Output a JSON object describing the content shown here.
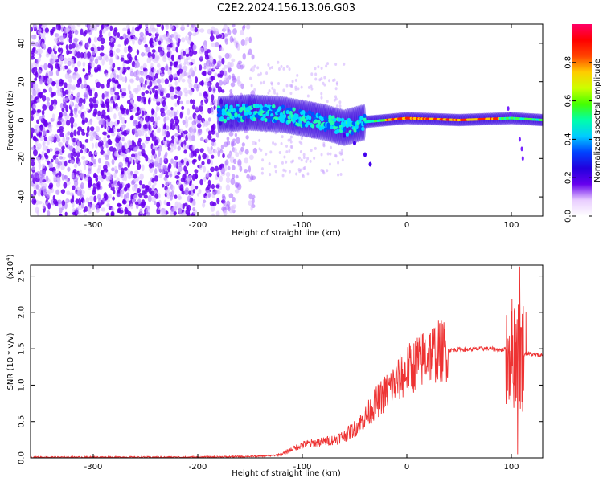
{
  "title": "C2E2.2024.156.13.06.G03",
  "chart_data": [
    {
      "type": "heatmap",
      "name": "spectrogram",
      "xlabel": "Height of straight line (km)",
      "ylabel": "Frequency (Hz)",
      "xlim": [
        -360,
        130
      ],
      "ylim": [
        -50,
        50
      ],
      "x_ticks": [
        "-300",
        "-200",
        "-100",
        "0",
        "100"
      ],
      "y_ticks": [
        "-40",
        "-20",
        "0",
        "20",
        "40"
      ],
      "colorbar": {
        "label": "Normalized spectral amplitude",
        "range": [
          0.0,
          1.0
        ],
        "ticks": [
          "0.0",
          "0.2",
          "0.4",
          "0.6",
          "0.8"
        ],
        "colormap": [
          "#ffffff",
          "#e8ccff",
          "#6600ee",
          "#2200dd",
          "#0044ff",
          "#00ccff",
          "#00ffaa",
          "#44ff00",
          "#ccff00",
          "#ffcc00",
          "#ff4400",
          "#ff0000",
          "#ff0066"
        ]
      },
      "signal_track": [
        {
          "x": -180,
          "f": 3
        },
        {
          "x": -150,
          "f": 4
        },
        {
          "x": -120,
          "f": 3
        },
        {
          "x": -100,
          "f": 1
        },
        {
          "x": -80,
          "f": -1
        },
        {
          "x": -60,
          "f": -4
        },
        {
          "x": -40,
          "f": -1
        },
        {
          "x": -20,
          "f": 0
        },
        {
          "x": 0,
          "f": 1
        },
        {
          "x": 50,
          "f": 0
        },
        {
          "x": 100,
          "f": 1
        },
        {
          "x": 130,
          "f": 0
        }
      ],
      "grid": false
    },
    {
      "type": "line",
      "name": "snr",
      "xlabel": "Height of straight line (km)",
      "ylabel": "SNR (10 * v/v)",
      "y_multiplier_label": "(x10",
      "y_multiplier_exp": "4",
      "xlim": [
        -360,
        130
      ],
      "ylim": [
        0,
        2.65
      ],
      "x_ticks": [
        "-300",
        "-200",
        "-100",
        "0",
        "100"
      ],
      "y_ticks": [
        "0.0",
        "0.5",
        "1.0",
        "1.5",
        "2.0",
        "2.5"
      ],
      "color": "#ee3333",
      "series": [
        {
          "x": [
            -360,
            -300,
            -200,
            -150,
            -130,
            -120,
            -110,
            -100,
            -90,
            -80,
            -70,
            -60,
            -50,
            -40,
            -30,
            -20,
            -10,
            0,
            10,
            20,
            30,
            40,
            50,
            60,
            70,
            80,
            90,
            95,
            100,
            105,
            110,
            115,
            120,
            130
          ],
          "values": [
            0.01,
            0.01,
            0.01,
            0.02,
            0.03,
            0.05,
            0.12,
            0.18,
            0.2,
            0.22,
            0.25,
            0.3,
            0.4,
            0.55,
            0.75,
            0.9,
            1.05,
            1.2,
            1.3,
            1.42,
            1.47,
            1.48,
            1.49,
            1.49,
            1.5,
            1.5,
            1.48,
            1.5,
            1.45,
            1.45,
            1.4,
            1.44,
            1.42,
            1.41
          ]
        }
      ],
      "grid": false
    }
  ]
}
